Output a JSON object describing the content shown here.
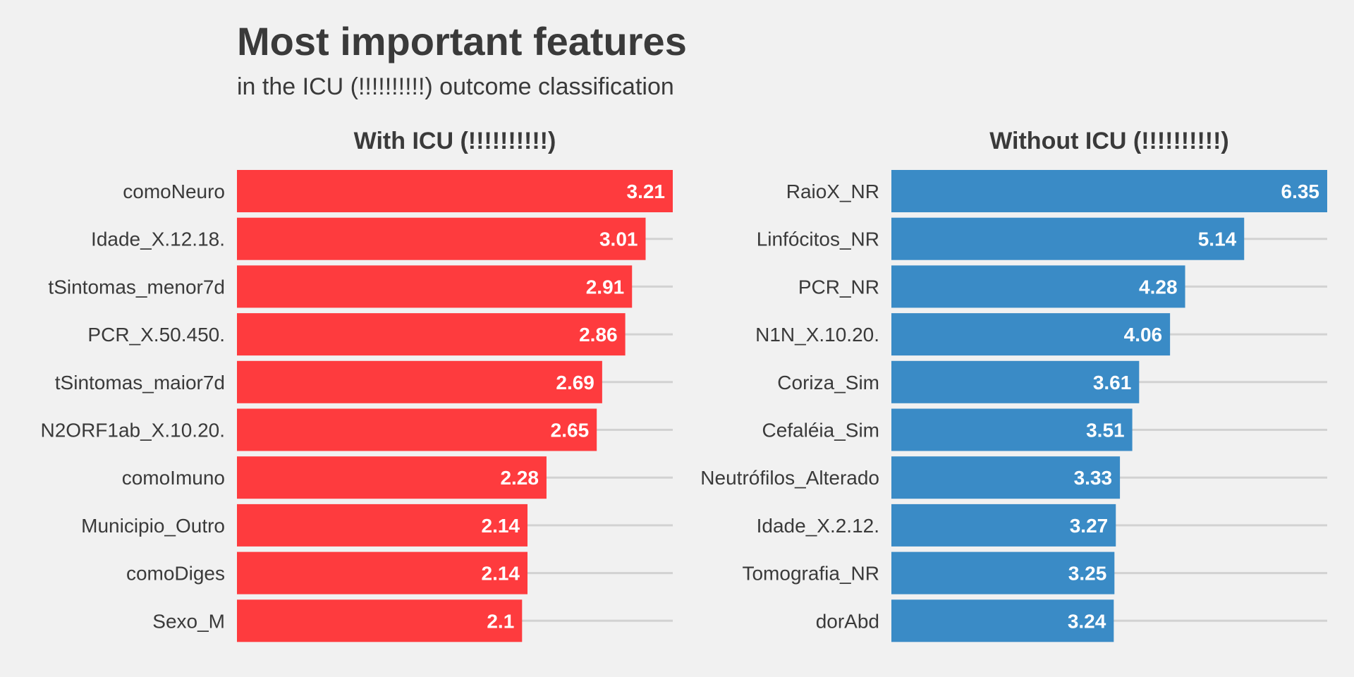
{
  "chart_data": {
    "type": "bar",
    "title": "Most important features",
    "subtitle": "in the ICU (!!!!!!!!!!) outcome classification",
    "orientation": "horizontal",
    "grid": true,
    "panels": [
      {
        "name": "With ICU (!!!!!!!!!!)",
        "color": "#fe3b3e",
        "categories": [
          "comoNeuro",
          "Idade_X.12.18.",
          "tSintomas_menor7d",
          "PCR_X.50.450.",
          "tSintomas_maior7d",
          "N2ORF1ab_X.10.20.",
          "comoImuno",
          "Municipio_Outro",
          "comoDiges",
          "Sexo_M"
        ],
        "values": [
          3.21,
          3.01,
          2.91,
          2.86,
          2.69,
          2.65,
          2.28,
          2.14,
          2.14,
          2.1
        ],
        "labels": [
          "3.21",
          "3.01",
          "2.91",
          "2.86",
          "2.69",
          "2.65",
          "2.28",
          "2.14",
          "2.14",
          "2.1"
        ]
      },
      {
        "name": "Without ICU (!!!!!!!!!!)",
        "color": "#3a8bc6",
        "categories": [
          "RaioX_NR",
          "Linfócitos_NR",
          "PCR_NR",
          "N1N_X.10.20.",
          "Coriza_Sim",
          "Cefaléia_Sim",
          "Neutrófilos_Alterado",
          "Idade_X.2.12.",
          "Tomografia_NR",
          "dorAbd"
        ],
        "values": [
          6.35,
          5.14,
          4.28,
          4.06,
          3.61,
          3.51,
          3.33,
          3.27,
          3.25,
          3.24
        ],
        "labels": [
          "6.35",
          "5.14",
          "4.28",
          "4.06",
          "3.61",
          "3.51",
          "3.33",
          "3.27",
          "3.25",
          "3.24"
        ]
      }
    ]
  }
}
